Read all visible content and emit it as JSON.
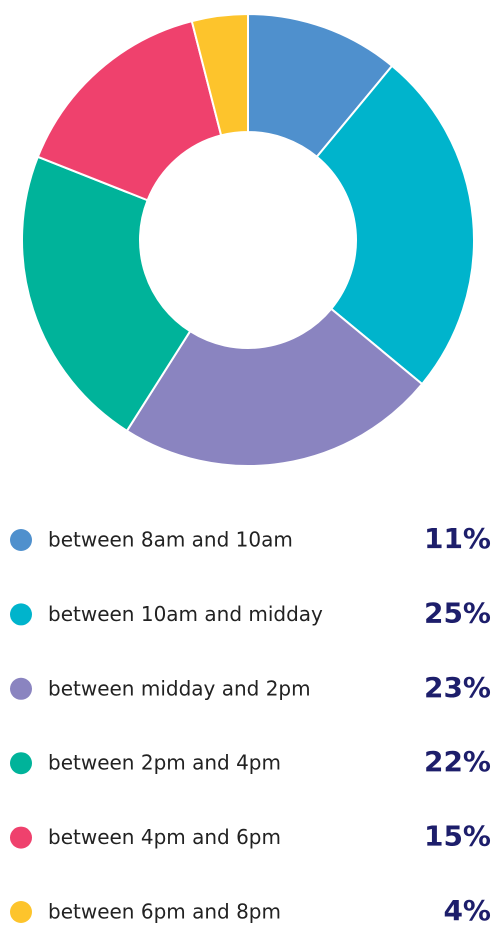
{
  "chart_data": {
    "type": "donut",
    "categories": [
      "between 8am and 10am",
      "between 10am and midday",
      "between midday and 2pm",
      "between 2pm and 4pm",
      "between 4pm and 6pm",
      "between 6pm and 8pm"
    ],
    "values": [
      11,
      25,
      23,
      22,
      15,
      4
    ],
    "value_labels": [
      "11%",
      "25%",
      "23%",
      "22%",
      "15%",
      "4%"
    ],
    "colors": [
      "#4f90cd",
      "#00b4cc",
      "#8a84c0",
      "#00b39a",
      "#ef416d",
      "#fdc42c"
    ]
  }
}
